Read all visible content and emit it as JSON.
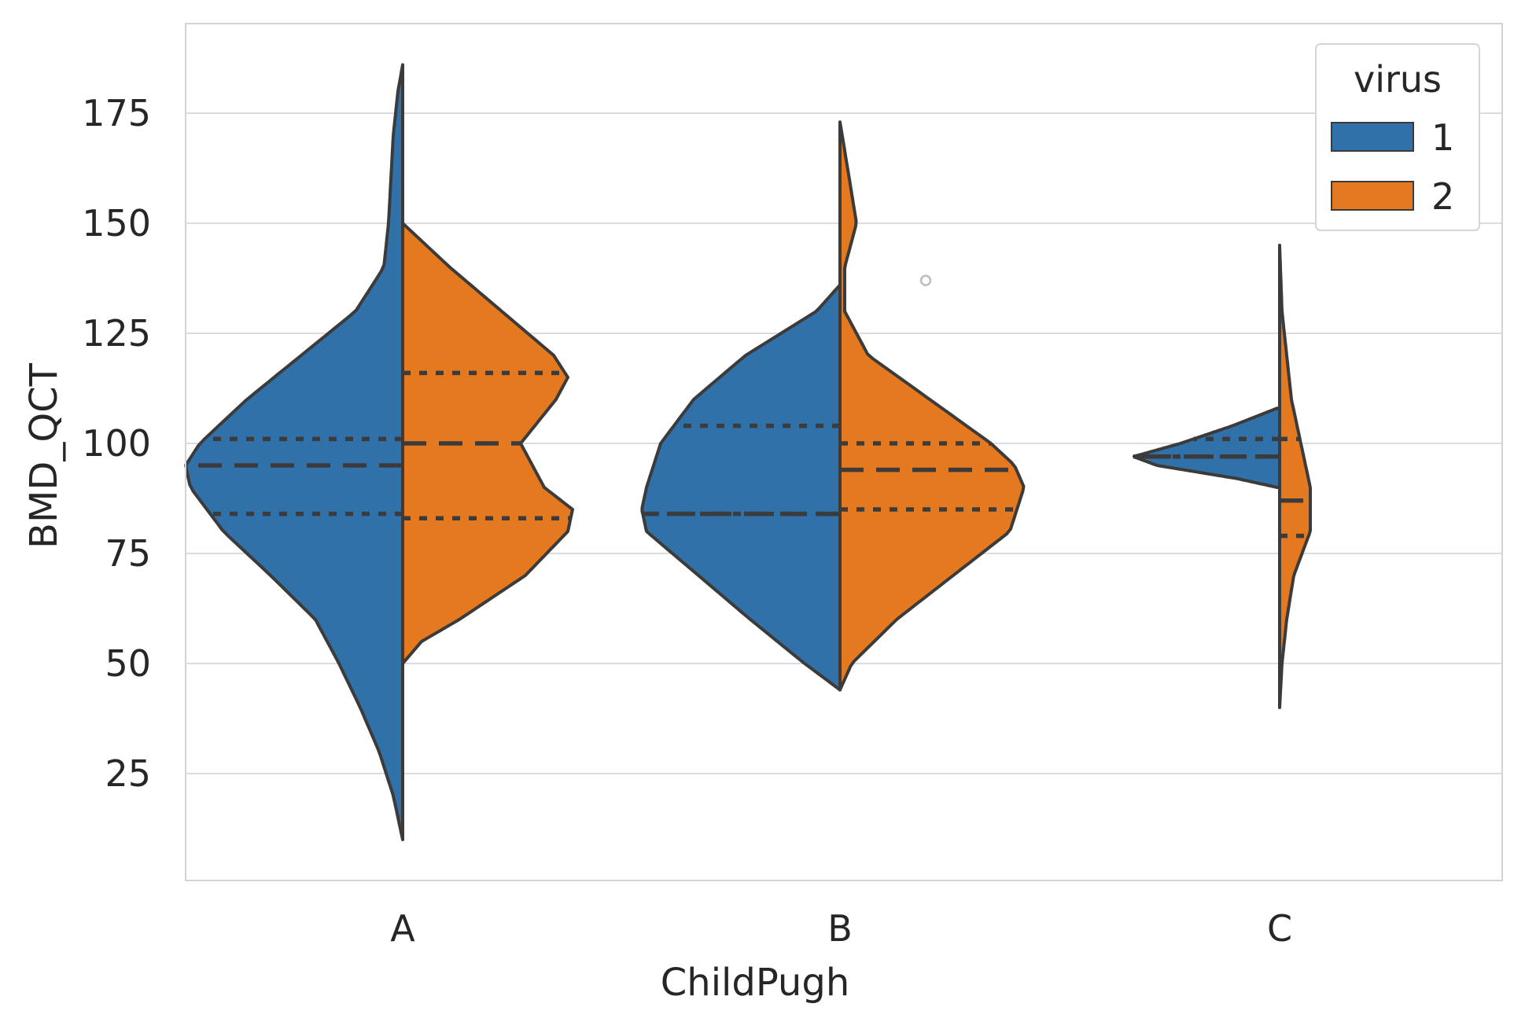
{
  "chart_data": {
    "type": "violin",
    "split": true,
    "inner": "quartile",
    "xlabel": "ChildPugh",
    "ylabel": "BMD_QCT",
    "categories": [
      "A",
      "B",
      "C"
    ],
    "ylim": [
      0,
      195
    ],
    "yticks": [
      25,
      50,
      75,
      100,
      125,
      150,
      175
    ],
    "grid": true,
    "legend": {
      "title": "virus",
      "position": "top-right"
    },
    "series": [
      {
        "name": "1",
        "color": "#2f71a8",
        "violins": [
          {
            "category": "A",
            "min": 10,
            "max": 186,
            "q1": 84,
            "median": 95,
            "q3": 101,
            "profile": [
              [
                10,
                0
              ],
              [
                20,
                0.04
              ],
              [
                30,
                0.1
              ],
              [
                40,
                0.18
              ],
              [
                50,
                0.27
              ],
              [
                60,
                0.37
              ],
              [
                70,
                0.56
              ],
              [
                80,
                0.76
              ],
              [
                90,
                0.9
              ],
              [
                95,
                0.92
              ],
              [
                100,
                0.86
              ],
              [
                110,
                0.66
              ],
              [
                120,
                0.43
              ],
              [
                130,
                0.2
              ],
              [
                140,
                0.08
              ],
              [
                150,
                0.06
              ],
              [
                160,
                0.05
              ],
              [
                170,
                0.04
              ],
              [
                180,
                0.02
              ],
              [
                186,
                0
              ]
            ]
          },
          {
            "category": "B",
            "min": 44,
            "max": 136,
            "q1": 84,
            "median": 84,
            "q3": 104,
            "profile": [
              [
                44,
                0
              ],
              [
                50,
                0.15
              ],
              [
                60,
                0.38
              ],
              [
                70,
                0.6
              ],
              [
                80,
                0.82
              ],
              [
                85,
                0.84
              ],
              [
                90,
                0.82
              ],
              [
                100,
                0.76
              ],
              [
                110,
                0.62
              ],
              [
                120,
                0.4
              ],
              [
                130,
                0.1
              ],
              [
                136,
                0
              ]
            ]
          },
          {
            "category": "C",
            "min": 90,
            "max": 108,
            "q1": 97,
            "median": 97,
            "q3": 101,
            "profile": [
              [
                90,
                0.01
              ],
              [
                92,
                0.18
              ],
              [
                95,
                0.52
              ],
              [
                97,
                0.62
              ],
              [
                100,
                0.42
              ],
              [
                104,
                0.2
              ],
              [
                108,
                0.01
              ]
            ]
          }
        ]
      },
      {
        "name": "2",
        "color": "#e5791f",
        "violins": [
          {
            "category": "A",
            "min": 50,
            "max": 150,
            "q1": 83,
            "median": 100,
            "q3": 116,
            "profile": [
              [
                50,
                0
              ],
              [
                55,
                0.08
              ],
              [
                60,
                0.24
              ],
              [
                70,
                0.52
              ],
              [
                80,
                0.7
              ],
              [
                85,
                0.72
              ],
              [
                90,
                0.6
              ],
              [
                100,
                0.5
              ],
              [
                110,
                0.65
              ],
              [
                115,
                0.7
              ],
              [
                120,
                0.64
              ],
              [
                130,
                0.42
              ],
              [
                140,
                0.2
              ],
              [
                150,
                0
              ]
            ]
          },
          {
            "category": "B",
            "min": 44,
            "max": 173,
            "q1": 85,
            "median": 94,
            "q3": 100,
            "profile": [
              [
                44,
                0
              ],
              [
                50,
                0.05
              ],
              [
                60,
                0.24
              ],
              [
                70,
                0.48
              ],
              [
                80,
                0.72
              ],
              [
                90,
                0.78
              ],
              [
                95,
                0.74
              ],
              [
                100,
                0.64
              ],
              [
                110,
                0.38
              ],
              [
                120,
                0.12
              ],
              [
                130,
                0.02
              ],
              [
                140,
                0.02
              ],
              [
                150,
                0.07
              ],
              [
                160,
                0.04
              ],
              [
                173,
                0
              ]
            ]
          },
          {
            "category": "C",
            "min": 40,
            "max": 145,
            "q1": 79,
            "median": 87,
            "q3": 101,
            "profile": [
              [
                40,
                0
              ],
              [
                50,
                0.01
              ],
              [
                60,
                0.03
              ],
              [
                70,
                0.06
              ],
              [
                80,
                0.13
              ],
              [
                90,
                0.13
              ],
              [
                100,
                0.09
              ],
              [
                110,
                0.05
              ],
              [
                120,
                0.03
              ],
              [
                130,
                0.01
              ],
              [
                145,
                0
              ]
            ]
          }
        ]
      }
    ],
    "outliers": [
      {
        "category": "B",
        "value": 137
      }
    ]
  }
}
